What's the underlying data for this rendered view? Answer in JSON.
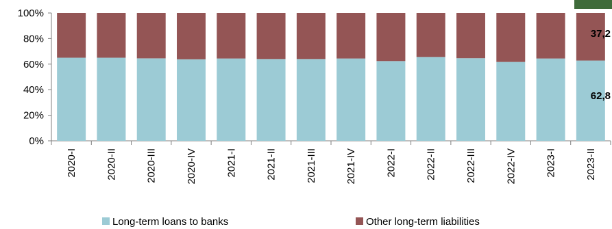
{
  "chart_data": {
    "type": "bar",
    "stacked": true,
    "percent": true,
    "categories": [
      "2020-I",
      "2020-II",
      "2020-III",
      "2020-IV",
      "2021-I",
      "2021-II",
      "2021-III",
      "2021-IV",
      "2022-I",
      "2022-II",
      "2022-III",
      "2022-IV",
      "2023-I",
      "2023-II"
    ],
    "series": [
      {
        "name": "Long-term loans to banks",
        "color": "#9ccbd5",
        "values": [
          65.0,
          65.0,
          64.5,
          63.8,
          64.4,
          64.0,
          64.0,
          64.4,
          62.4,
          65.6,
          64.6,
          61.7,
          64.4,
          62.8
        ]
      },
      {
        "name": "Other long-term liabilities",
        "color": "#945555",
        "values": [
          35.0,
          35.0,
          35.5,
          36.2,
          35.6,
          36.0,
          36.0,
          35.6,
          37.6,
          34.4,
          35.4,
          38.3,
          35.6,
          37.2
        ]
      }
    ],
    "yticks": [
      "0%",
      "20%",
      "40%",
      "60%",
      "80%",
      "100%"
    ],
    "ylim": [
      0,
      100
    ],
    "data_labels": {
      "bottom": "62,8",
      "top": "37,2"
    },
    "legend_position": "bottom",
    "grid": false
  },
  "decor": {
    "corner_tab_color": "#3f6b3a"
  }
}
